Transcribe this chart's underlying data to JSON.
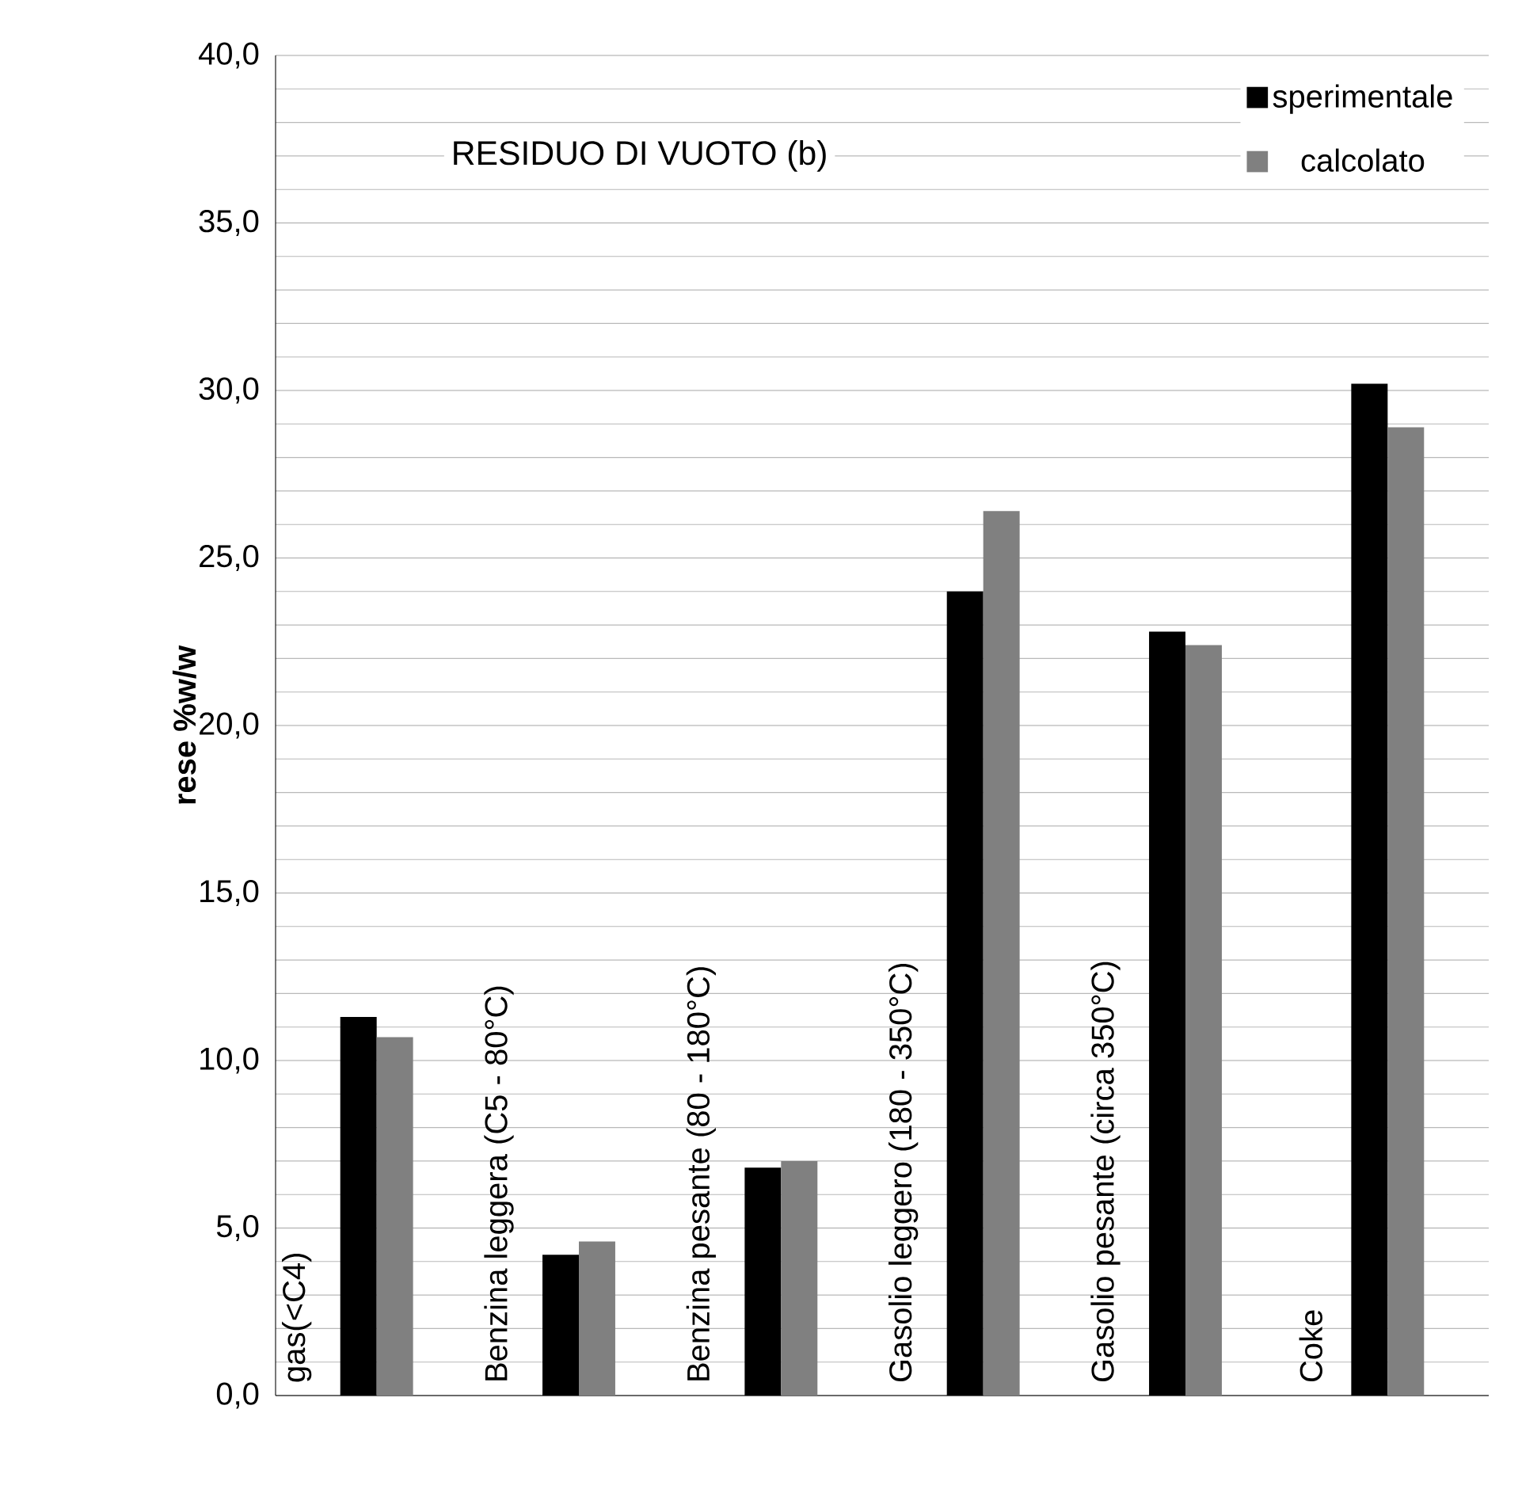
{
  "chart_data": {
    "type": "bar",
    "title": "RESIDUO DI VUOTO (b)",
    "ylabel": "rese %w/w",
    "categories": [
      "gas(<C4)",
      "Benzina leggera (C5 - 80°C)",
      "Benzina pesante (80 - 180°C)",
      "Gasolio leggero (180 - 350°C)",
      "Gasolio pesante (circa 350°C)",
      "Coke"
    ],
    "series": [
      {
        "name": "sperimentale",
        "color": "#000000",
        "values": [
          11.3,
          4.2,
          6.8,
          24.0,
          22.8,
          30.2
        ]
      },
      {
        "name": "calcolato",
        "color": "#808080",
        "values": [
          10.7,
          4.6,
          7.0,
          26.4,
          22.4,
          28.9
        ]
      }
    ],
    "ylim": [
      0,
      40
    ],
    "yticks": [
      {
        "value": 0,
        "label": "0,0"
      },
      {
        "value": 5,
        "label": "5,0"
      },
      {
        "value": 10,
        "label": "10,0"
      },
      {
        "value": 15,
        "label": "15,0"
      },
      {
        "value": 20,
        "label": "20,0"
      },
      {
        "value": 25,
        "label": "25,0"
      },
      {
        "value": 30,
        "label": "30,0"
      },
      {
        "value": 35,
        "label": "35,0"
      },
      {
        "value": 40,
        "label": "40,0"
      }
    ],
    "grid": "y",
    "legend": "top right"
  }
}
